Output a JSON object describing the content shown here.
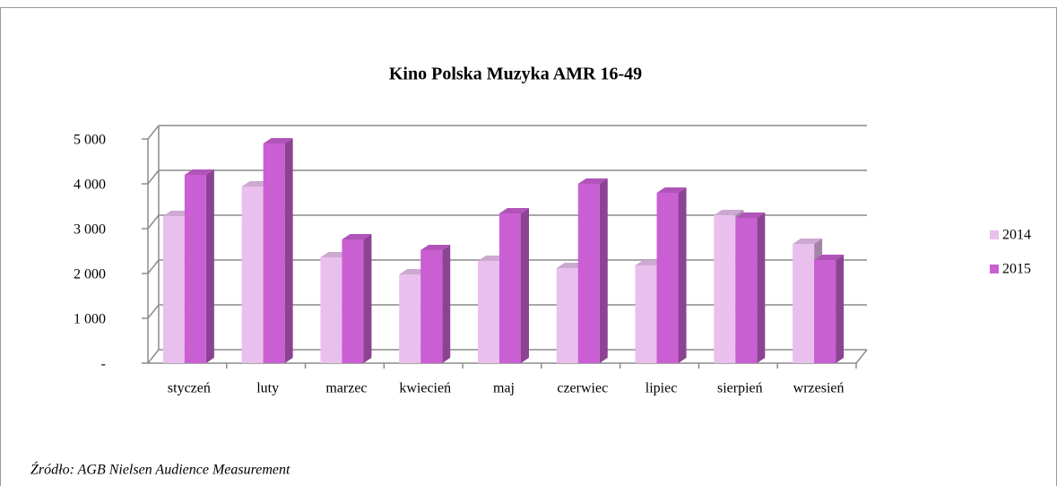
{
  "chart_data": {
    "type": "bar3d",
    "title": "Kino Polska Muzyka AMR 16-49",
    "categories": [
      "styczeń",
      "luty",
      "marzec",
      "kwiecień",
      "maj",
      "czerwiec",
      "lipiec",
      "sierpień",
      "wrzesień"
    ],
    "series": [
      {
        "name": "2014",
        "color": "#e9bfee",
        "values": [
          3280,
          3940,
          2360,
          1980,
          2280,
          2120,
          2180,
          3300,
          2660
        ]
      },
      {
        "name": "2015",
        "color": "#c95fd2",
        "values": [
          4200,
          4900,
          2760,
          2520,
          3340,
          4000,
          3800,
          3240,
          2300
        ]
      }
    ],
    "ylim": [
      0,
      5000
    ],
    "yticks": [
      {
        "value": 0,
        "label": "-"
      },
      {
        "value": 1000,
        "label": "1 000"
      },
      {
        "value": 2000,
        "label": "2 000"
      },
      {
        "value": 3000,
        "label": "3 000"
      },
      {
        "value": 4000,
        "label": "4 000"
      },
      {
        "value": 5000,
        "label": "5 000"
      }
    ],
    "grid": true,
    "legend": "right",
    "source": "Źródło: AGB Nielsen Audience Measurement"
  }
}
